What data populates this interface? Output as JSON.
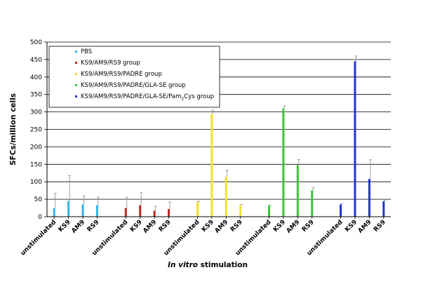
{
  "chart_data": {
    "type": "bar",
    "ylabel": "SFCs/million cells",
    "xlabel_italic": "In vitro",
    "xlabel_rest": " stimulation",
    "ylim": [
      0,
      500
    ],
    "yticks": [
      0,
      50,
      100,
      150,
      200,
      250,
      300,
      350,
      400,
      450,
      500
    ],
    "grid": true,
    "legend_position": "top-left",
    "groups": [
      {
        "name": "PBS",
        "color": "#33b5e5",
        "categories": [
          "unstimulated",
          "KS9",
          "AM9",
          "RS9"
        ],
        "values": [
          25,
          45,
          35,
          33
        ],
        "errors": [
          42,
          73,
          25,
          23
        ]
      },
      {
        "name": "KS9/AM9/RS9 group",
        "color": "#c0281e",
        "categories": [
          "unstimulated",
          "KS9",
          "AM9",
          "RS9"
        ],
        "values": [
          25,
          33,
          17,
          22
        ],
        "errors": [
          30,
          36,
          13,
          19
        ]
      },
      {
        "name": "KS9/AM9/RS9/PADRE group",
        "color": "#f2e02c",
        "categories": [
          "unstimulated",
          "KS9",
          "AM9",
          "RS9"
        ],
        "values": [
          42,
          295,
          115,
          32
        ],
        "errors": [
          2,
          10,
          18,
          3
        ]
      },
      {
        "name": "KS9/AM9/RS9/PADRE/GLA-SE group",
        "color": "#3cc43c",
        "categories": [
          "unstimulated",
          "KS9",
          "AM9",
          "RS9"
        ],
        "values": [
          32,
          310,
          148,
          75
        ],
        "errors": [
          1,
          7,
          16,
          8
        ]
      },
      {
        "name": "KS9/AM9/RS9/PADRE/GLA-SE/Pam",
        "name_sub": "2",
        "name_suffix": "Cys group",
        "color": "#2233cc",
        "categories": [
          "unstimulated",
          "KS9",
          "AM9",
          "RS9"
        ],
        "values": [
          35,
          445,
          108,
          44
        ],
        "errors": [
          2,
          15,
          55,
          2
        ]
      }
    ]
  }
}
